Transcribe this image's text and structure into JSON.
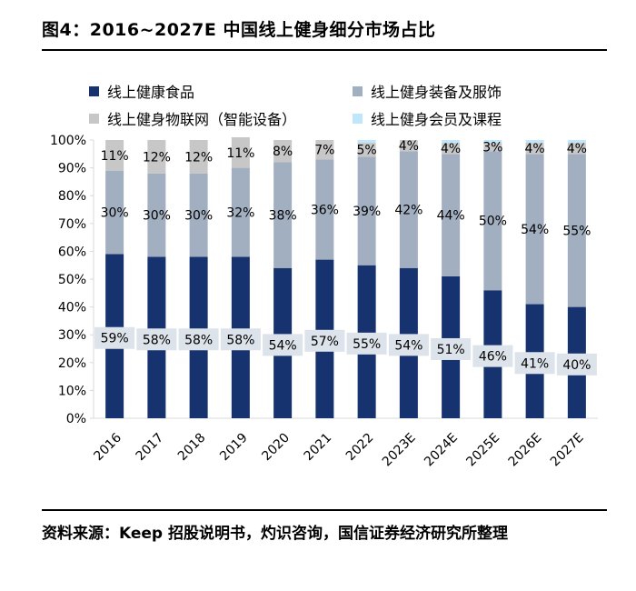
{
  "title": "图4：2016~2027E 中国线上健身细分市场占比",
  "source": "资料来源：Keep 招股说明书，灼识咨询，国信证券经济研究所整理",
  "colors": {
    "food": "#17336f",
    "equipment": "#a2afc1",
    "iot": "#c7c7c7",
    "membership": "#bfe6fb",
    "label_box": "#dde3ea",
    "axis": "#d9d9d9"
  },
  "chart_data": {
    "type": "bar",
    "stacked": true,
    "categories": [
      "2016",
      "2017",
      "2018",
      "2019",
      "2020",
      "2021",
      "2022",
      "2023E",
      "2024E",
      "2025E",
      "2026E",
      "2027E"
    ],
    "ylim": [
      0,
      100
    ],
    "yticks": [
      "0%",
      "10%",
      "20%",
      "30%",
      "40%",
      "50%",
      "60%",
      "70%",
      "80%",
      "90%",
      "100%"
    ],
    "legend_position": "top",
    "series": [
      {
        "name": "线上健康食品",
        "color": "#17336f",
        "values": [
          59,
          58,
          58,
          58,
          54,
          57,
          55,
          54,
          51,
          46,
          41,
          40
        ],
        "labels": [
          "59%",
          "58%",
          "58%",
          "58%",
          "54%",
          "57%",
          "55%",
          "54%",
          "51%",
          "46%",
          "41%",
          "40%"
        ]
      },
      {
        "name": "线上健身装备及服饰",
        "color": "#a2afc1",
        "values": [
          30,
          30,
          30,
          32,
          38,
          36,
          39,
          42,
          44,
          50,
          54,
          55
        ],
        "labels": [
          "30%",
          "30%",
          "30%",
          "32%",
          "38%",
          "36%",
          "39%",
          "42%",
          "44%",
          "50%",
          "54%",
          "55%"
        ]
      },
      {
        "name": "线上健身物联网（智能设备）",
        "color": "#c7c7c7",
        "values": [
          11,
          12,
          12,
          11,
          8,
          7,
          5,
          4,
          4,
          3,
          4,
          4
        ],
        "labels": [
          "11%",
          "12%",
          "12%",
          "11%",
          "8%",
          "7%",
          "5%",
          "4%",
          "4%",
          "3%",
          "4%",
          "4%"
        ]
      },
      {
        "name": "线上健身会员及课程",
        "color": "#bfe6fb",
        "values": [
          0,
          0,
          0,
          0,
          0,
          0,
          1,
          0,
          1,
          1,
          1,
          1
        ],
        "labels": []
      }
    ]
  }
}
